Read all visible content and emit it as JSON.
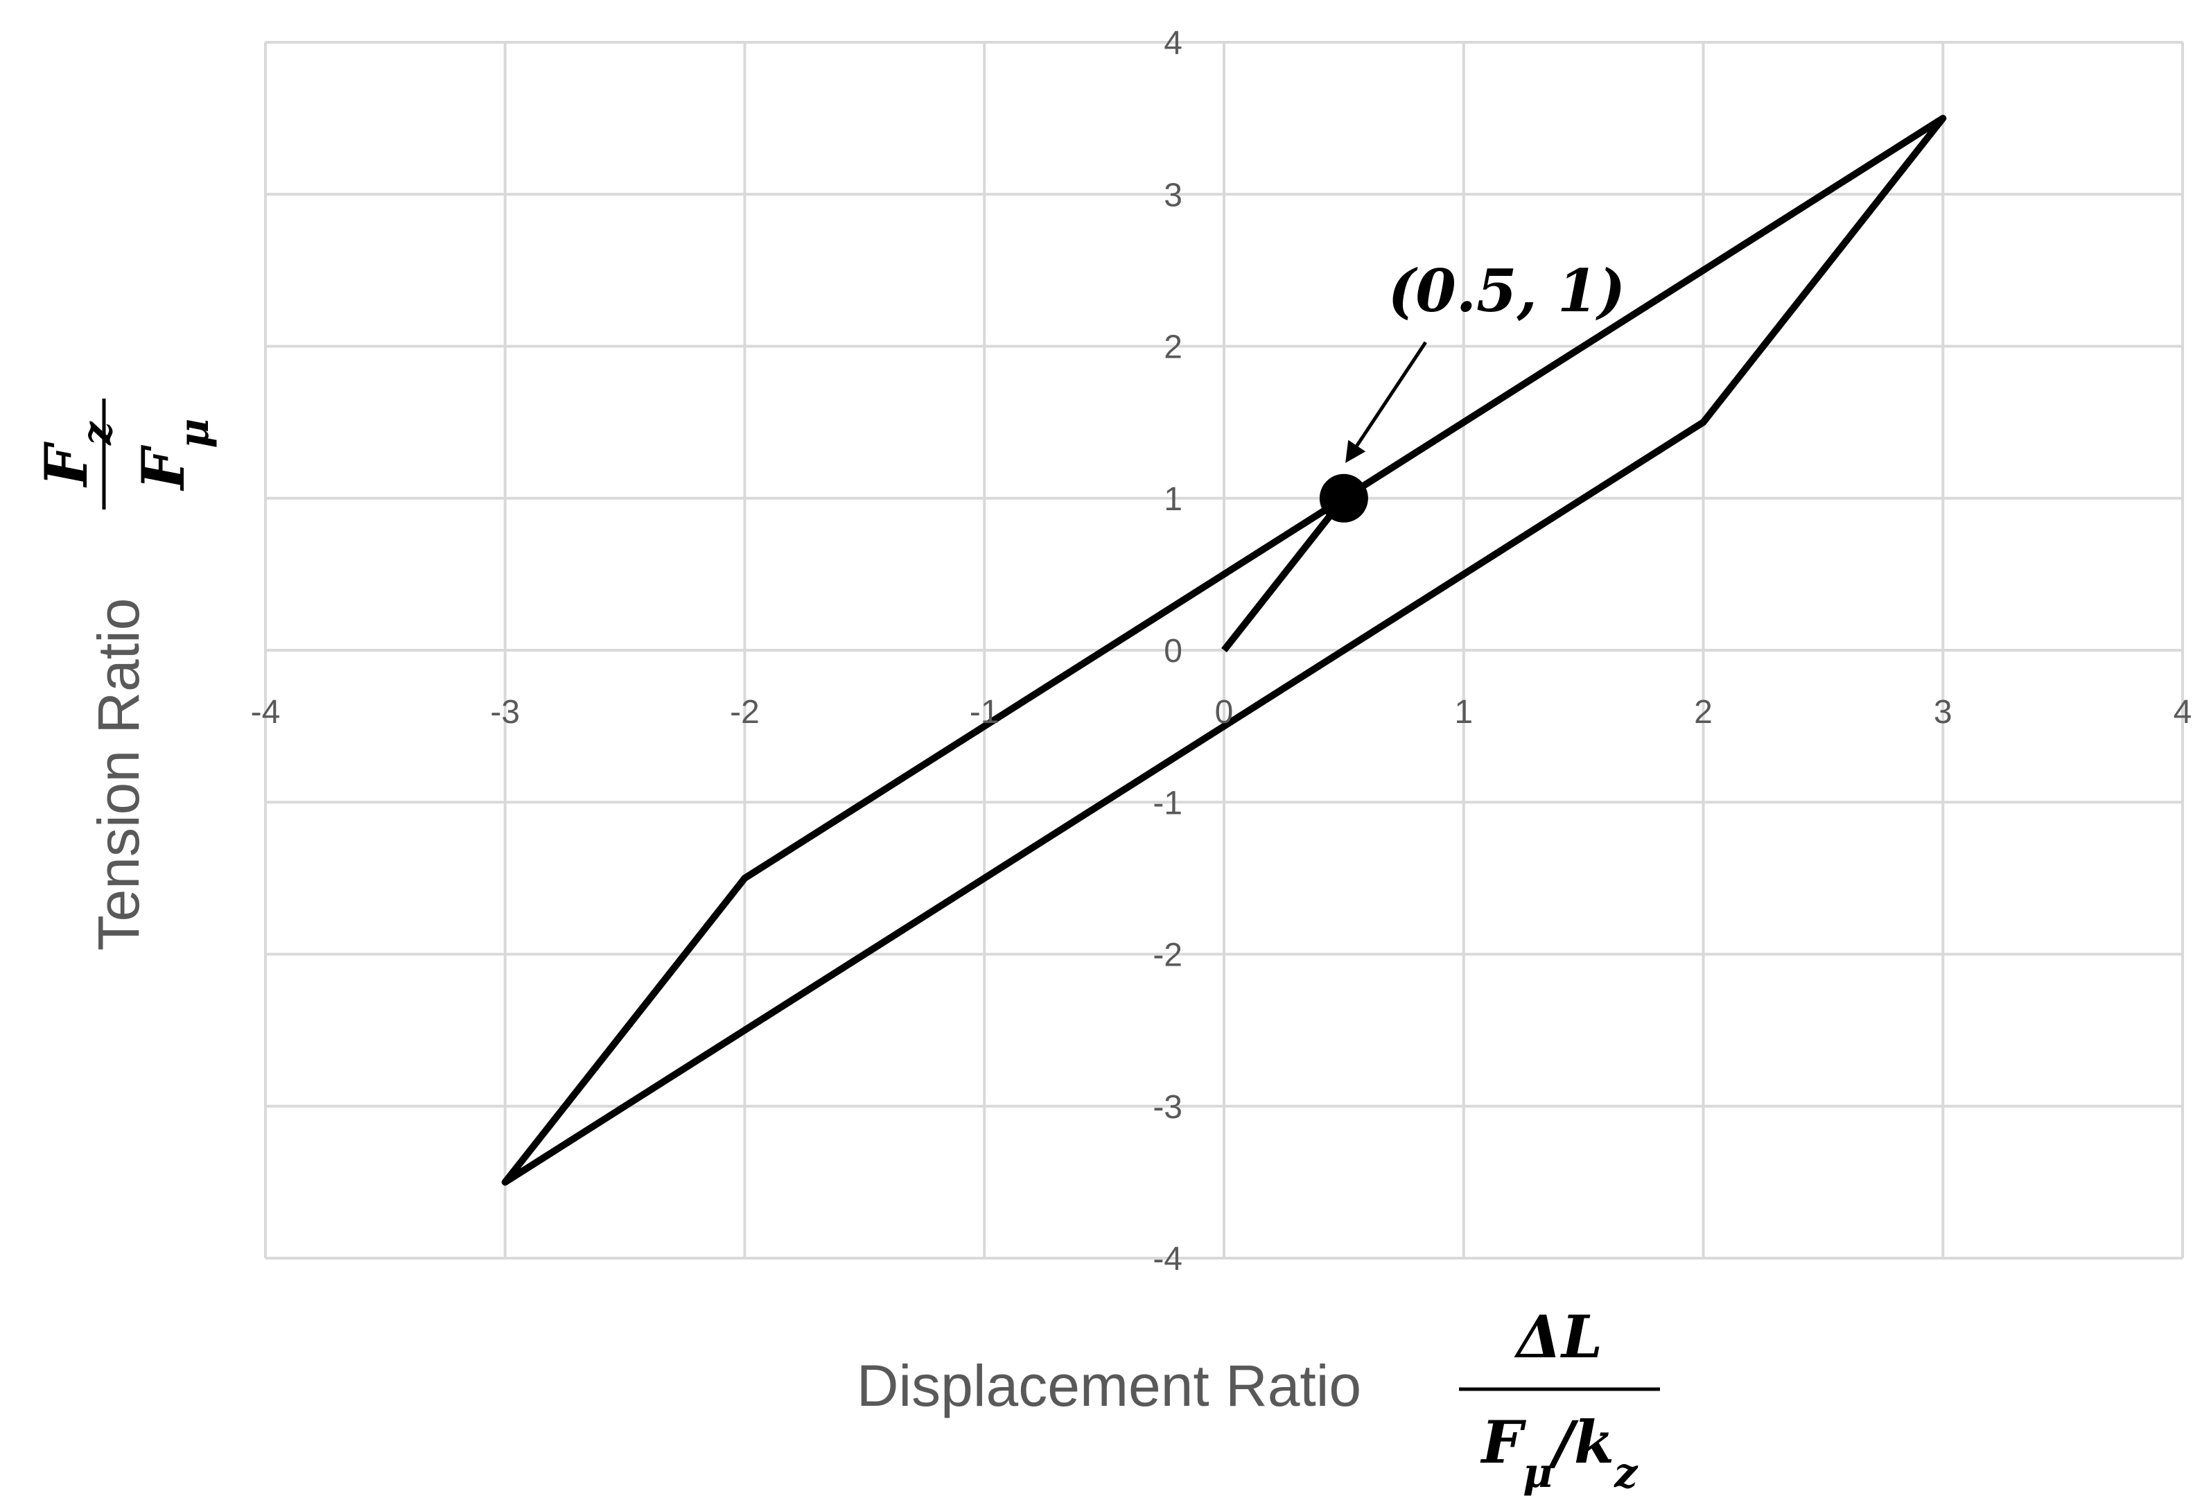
{
  "chart_data": {
    "type": "line",
    "x_label": "Displacement Ratio",
    "x_label_fraction": {
      "numerator": [
        {
          "base": "ΔL"
        }
      ],
      "denominator": [
        {
          "base": "F",
          "sub": "μ"
        },
        {
          "base": "/k",
          "sub": "z"
        }
      ]
    },
    "y_label": "Tension Ratio",
    "y_label_fraction": {
      "numerator": [
        {
          "base": "F",
          "sub": "z"
        }
      ],
      "denominator": [
        {
          "base": "F",
          "sub": "μ"
        }
      ]
    },
    "series": [
      {
        "color": "#000000",
        "x": [
          0,
          0.5,
          3,
          2,
          -3,
          -2,
          0.5
        ],
        "values": [
          0,
          1,
          3.5,
          1.5,
          -3.5,
          -1.5,
          1
        ]
      }
    ],
    "annotation": {
      "text": "(0.5, 1)",
      "x": 0.5,
      "y": 1
    },
    "xlim": [
      -4,
      4
    ],
    "ylim": [
      -4,
      4
    ],
    "xticks": [
      -4,
      -3,
      -2,
      -1,
      0,
      1,
      2,
      3,
      4
    ],
    "yticks": [
      -4,
      -3,
      -2,
      -1,
      0,
      1,
      2,
      3,
      4
    ],
    "grid": true
  }
}
